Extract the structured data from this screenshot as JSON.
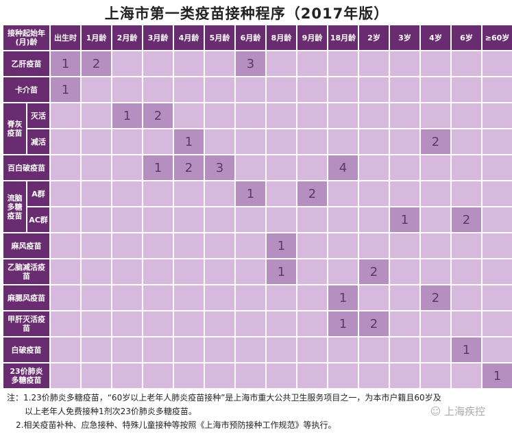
{
  "title": "上海市第一类疫苗接种程序（2017年版）",
  "corner_header": "接种起始年(月)龄",
  "columns": [
    "出生时",
    "1月龄",
    "2月龄",
    "3月龄",
    "4月龄",
    "5月龄",
    "6月龄",
    "8月龄",
    "9月龄",
    "18月龄",
    "2岁",
    "3岁",
    "4岁",
    "6岁",
    "≥60岁"
  ],
  "rows": [
    {
      "group": null,
      "label": "乙肝疫苗",
      "doses": {
        "出生时": "1",
        "1月龄": "2",
        "6月龄": "3"
      }
    },
    {
      "group": null,
      "label": "卡介苗",
      "doses": {
        "出生时": "1"
      }
    },
    {
      "group": "脊灰疫苗",
      "label": "灭活",
      "doses": {
        "2月龄": "1",
        "3月龄": "2"
      }
    },
    {
      "group": "脊灰疫苗",
      "label": "减活",
      "doses": {
        "4月龄": "1",
        "4岁": "2"
      }
    },
    {
      "group": null,
      "label": "百白破疫苗",
      "doses": {
        "3月龄": "1",
        "4月龄": "2",
        "5月龄": "3",
        "18月龄": "4"
      }
    },
    {
      "group": "流脑多糖疫苗",
      "label": "A群",
      "doses": {
        "6月龄": "1",
        "9月龄": "2"
      }
    },
    {
      "group": "流脑多糖疫苗",
      "label": "AC群",
      "doses": {
        "3岁": "1",
        "6岁": "2"
      }
    },
    {
      "group": null,
      "label": "麻风疫苗",
      "doses": {
        "8月龄": "1"
      }
    },
    {
      "group": null,
      "label": "乙脑减活疫苗",
      "doses": {
        "8月龄": "1",
        "2岁": "2"
      }
    },
    {
      "group": null,
      "label": "麻腮风疫苗",
      "doses": {
        "18月龄": "1",
        "4岁": "2"
      }
    },
    {
      "group": null,
      "label": "甲肝灭活疫苗",
      "doses": {
        "18月龄": "1",
        "2岁": "2"
      }
    },
    {
      "group": null,
      "label": "白破疫苗",
      "doses": {
        "6岁": "1"
      }
    },
    {
      "group": null,
      "label": "23价肺炎多糖疫苗",
      "doses": {
        "≥60岁": "1"
      }
    }
  ],
  "notes": {
    "line1": "注：1.23价肺炎多糖疫苗，“60岁以上老年人肺炎疫苗接种”是上海市重大公共卫生服务项目之一，为本市户籍且60岁及",
    "line2": "以上老年人免费接种1剂次23价肺炎多糖疫苗。",
    "line3": "2.相关疫苗补种、应急接种、特殊儿童接种等按照《上海市预防接种工作规范》等执行。"
  },
  "watermark": "上海疾控",
  "colors": {
    "header": "#6a2c70",
    "cell": "#d6b9dc",
    "dose_cell": "#b48fc0",
    "dose_text": "#5a3a63"
  }
}
